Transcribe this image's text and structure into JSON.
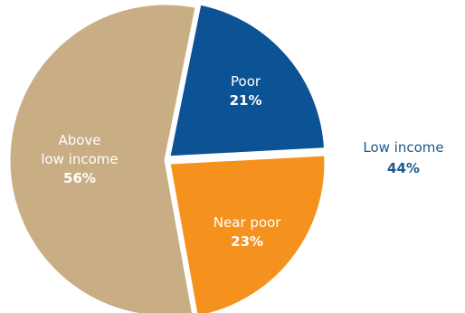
{
  "chart_data": {
    "type": "pie",
    "slices": [
      {
        "label_lines": [
          "Poor"
        ],
        "value": 21,
        "value_label": "21%",
        "color": "#0b5394"
      },
      {
        "label_lines": [
          "Near poor"
        ],
        "value": 23,
        "value_label": "23%",
        "color": "#f5921e"
      },
      {
        "label_lines": [
          "Above",
          "low income"
        ],
        "value": 56,
        "value_label": "56%",
        "color": "#c8ad85"
      }
    ],
    "group_annotation": {
      "label": "Low income",
      "value": "44%",
      "members": [
        "Poor",
        "Near poor"
      ],
      "color": "#1a5a8e"
    }
  }
}
